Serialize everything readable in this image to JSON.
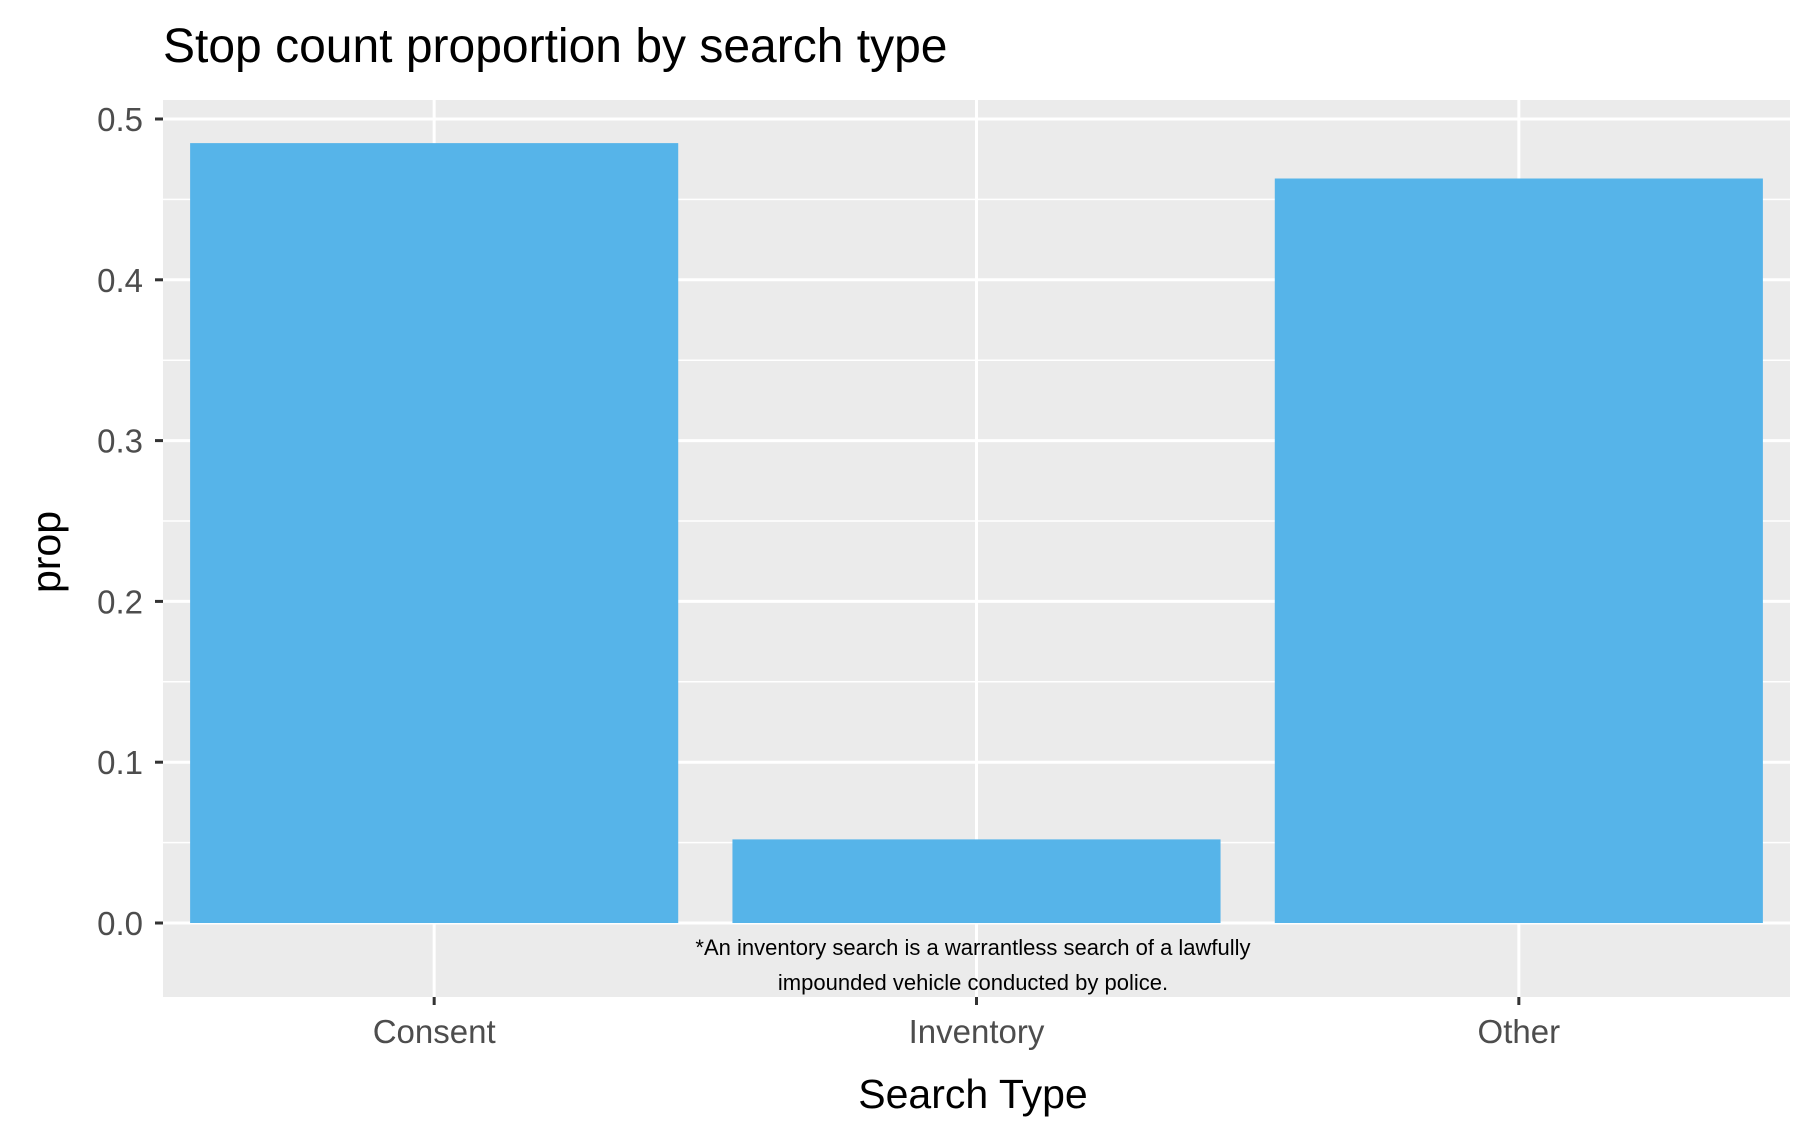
{
  "chart_data": {
    "type": "bar",
    "title": "Stop count proportion by search type",
    "xlabel": "Search Type",
    "ylabel": "prop",
    "categories": [
      "Consent",
      "Inventory",
      "Other"
    ],
    "values": [
      0.485,
      0.052,
      0.463
    ],
    "ylim": [
      -0.05,
      0.505
    ],
    "yticks": [
      0.0,
      0.1,
      0.2,
      0.3,
      0.4,
      0.5
    ],
    "ytick_labels": [
      "0.0",
      "0.1",
      "0.2",
      "0.3",
      "0.4",
      "0.5"
    ],
    "grid": true,
    "legend": "none",
    "annotation": {
      "line1": "*An inventory search is a warrantless search of a lawfully",
      "line2": "impounded vehicle conducted by police."
    },
    "colors": {
      "bar": "#56B4E9",
      "panel": "#EBEBEB",
      "grid_major": "#FFFFFF",
      "grid_minor": "#F5F5F5",
      "tick": "#333333",
      "tick_text": "#4D4D4D"
    }
  }
}
